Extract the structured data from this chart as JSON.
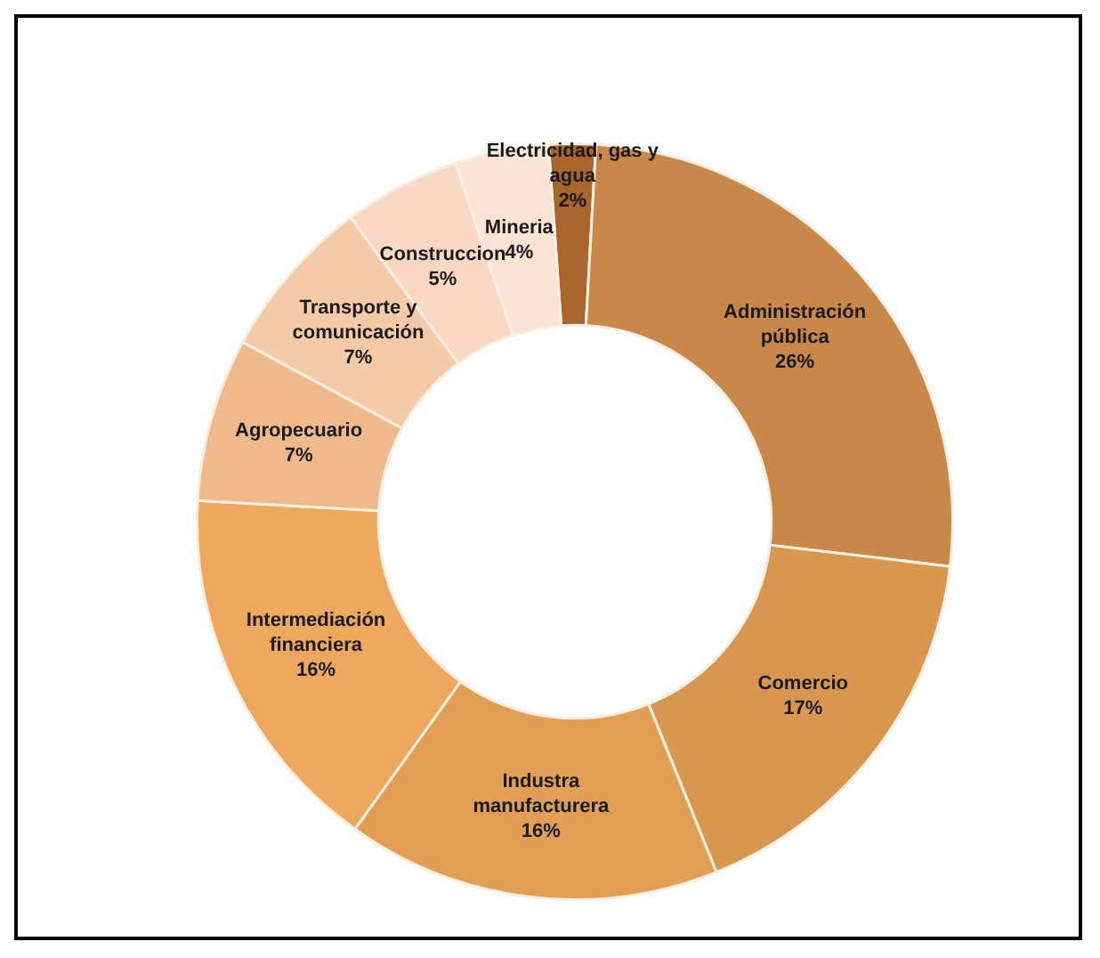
{
  "chart_data": {
    "type": "donut",
    "categories": [
      "Electricidad, gas y agua",
      "Administración pública",
      "Comercio",
      "Industra manufacturera",
      "Intermediación financiera",
      "Agropecuario",
      "Transporte y comunicación",
      "Construccion",
      "Mineria"
    ],
    "values": [
      2,
      26,
      17,
      16,
      16,
      7,
      7,
      5,
      4
    ],
    "value_labels": [
      "2%",
      "26%",
      "17%",
      "16%",
      "16%",
      "7%",
      "7%",
      "5%",
      "4%"
    ],
    "colors": [
      "#a8652c",
      "#c8884a",
      "#d9964f",
      "#e29e55",
      "#eda85e",
      "#f0b98c",
      "#f5caa9",
      "#f8d8c2",
      "#fbe3d3"
    ],
    "data_labels": true,
    "legend": false
  }
}
